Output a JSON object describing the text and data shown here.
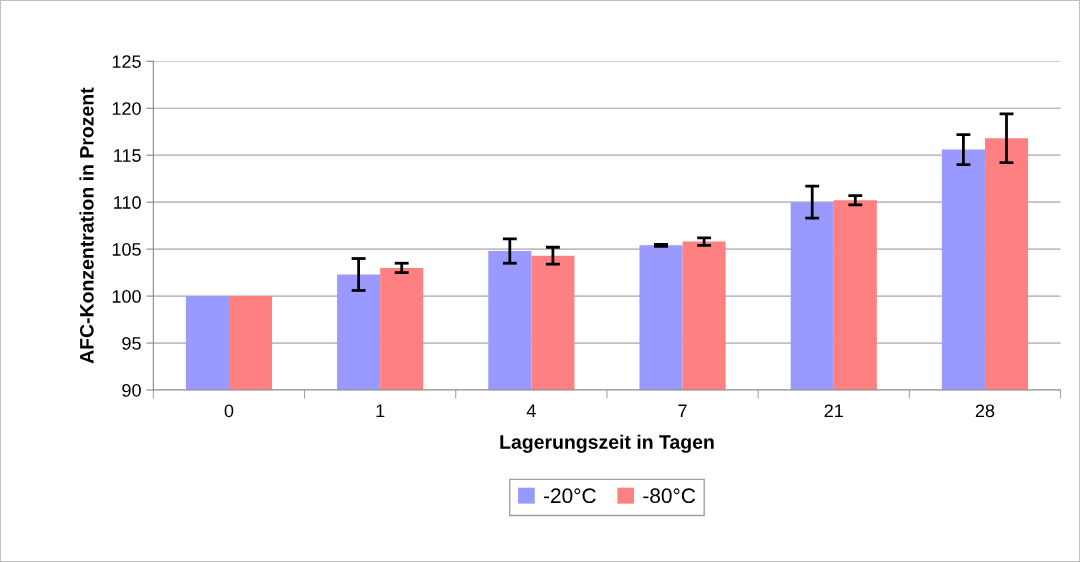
{
  "chart_data": {
    "type": "bar",
    "xlabel": "Lagerungszeit in Tagen",
    "ylabel": "AFC-Konzentration in Prozent",
    "categories": [
      "0",
      "1",
      "4",
      "7",
      "21",
      "28"
    ],
    "series": [
      {
        "name": "-20°C",
        "color": "#9999ff",
        "values": [
          100,
          102.3,
          104.8,
          105.4,
          110.0,
          115.6
        ],
        "errors": [
          null,
          1.7,
          1.3,
          0.1,
          1.7,
          1.6
        ]
      },
      {
        "name": "-80°C",
        "color": "#ff8080",
        "values": [
          100,
          103.0,
          104.3,
          105.8,
          110.2,
          116.8
        ],
        "errors": [
          null,
          0.5,
          0.9,
          0.4,
          0.5,
          2.6
        ]
      }
    ],
    "ylim": [
      90,
      125
    ],
    "yticks": [
      90,
      95,
      100,
      105,
      110,
      115,
      120,
      125
    ],
    "grid": "y",
    "legend": "bottom"
  }
}
